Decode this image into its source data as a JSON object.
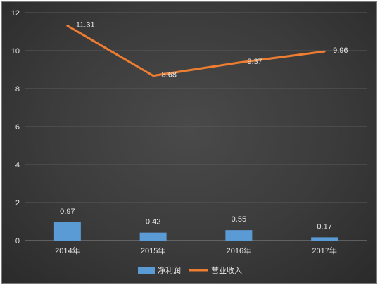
{
  "chart_data": {
    "type": "bar",
    "categories": [
      "2014年",
      "2015年",
      "2016年",
      "2017年"
    ],
    "series": [
      {
        "name": "净利润",
        "kind": "bar",
        "color": "#5b9bd5",
        "values": [
          0.97,
          0.42,
          0.55,
          0.17
        ],
        "labels": [
          "0.97",
          "0.42",
          "0.55",
          "0.17"
        ]
      },
      {
        "name": "营业收入",
        "kind": "line",
        "color": "#ed7d31",
        "values": [
          11.31,
          8.68,
          9.37,
          9.96
        ],
        "labels": [
          "11.31",
          "8.68",
          "9.37",
          "9.96"
        ]
      }
    ],
    "ylim": [
      0,
      12
    ],
    "yticks": [
      "0",
      "2",
      "4",
      "6",
      "8",
      "10",
      "12"
    ],
    "grid": true,
    "legend_position": "bottom",
    "background_color": "#404040",
    "grid_color": "#5a5a5a"
  }
}
